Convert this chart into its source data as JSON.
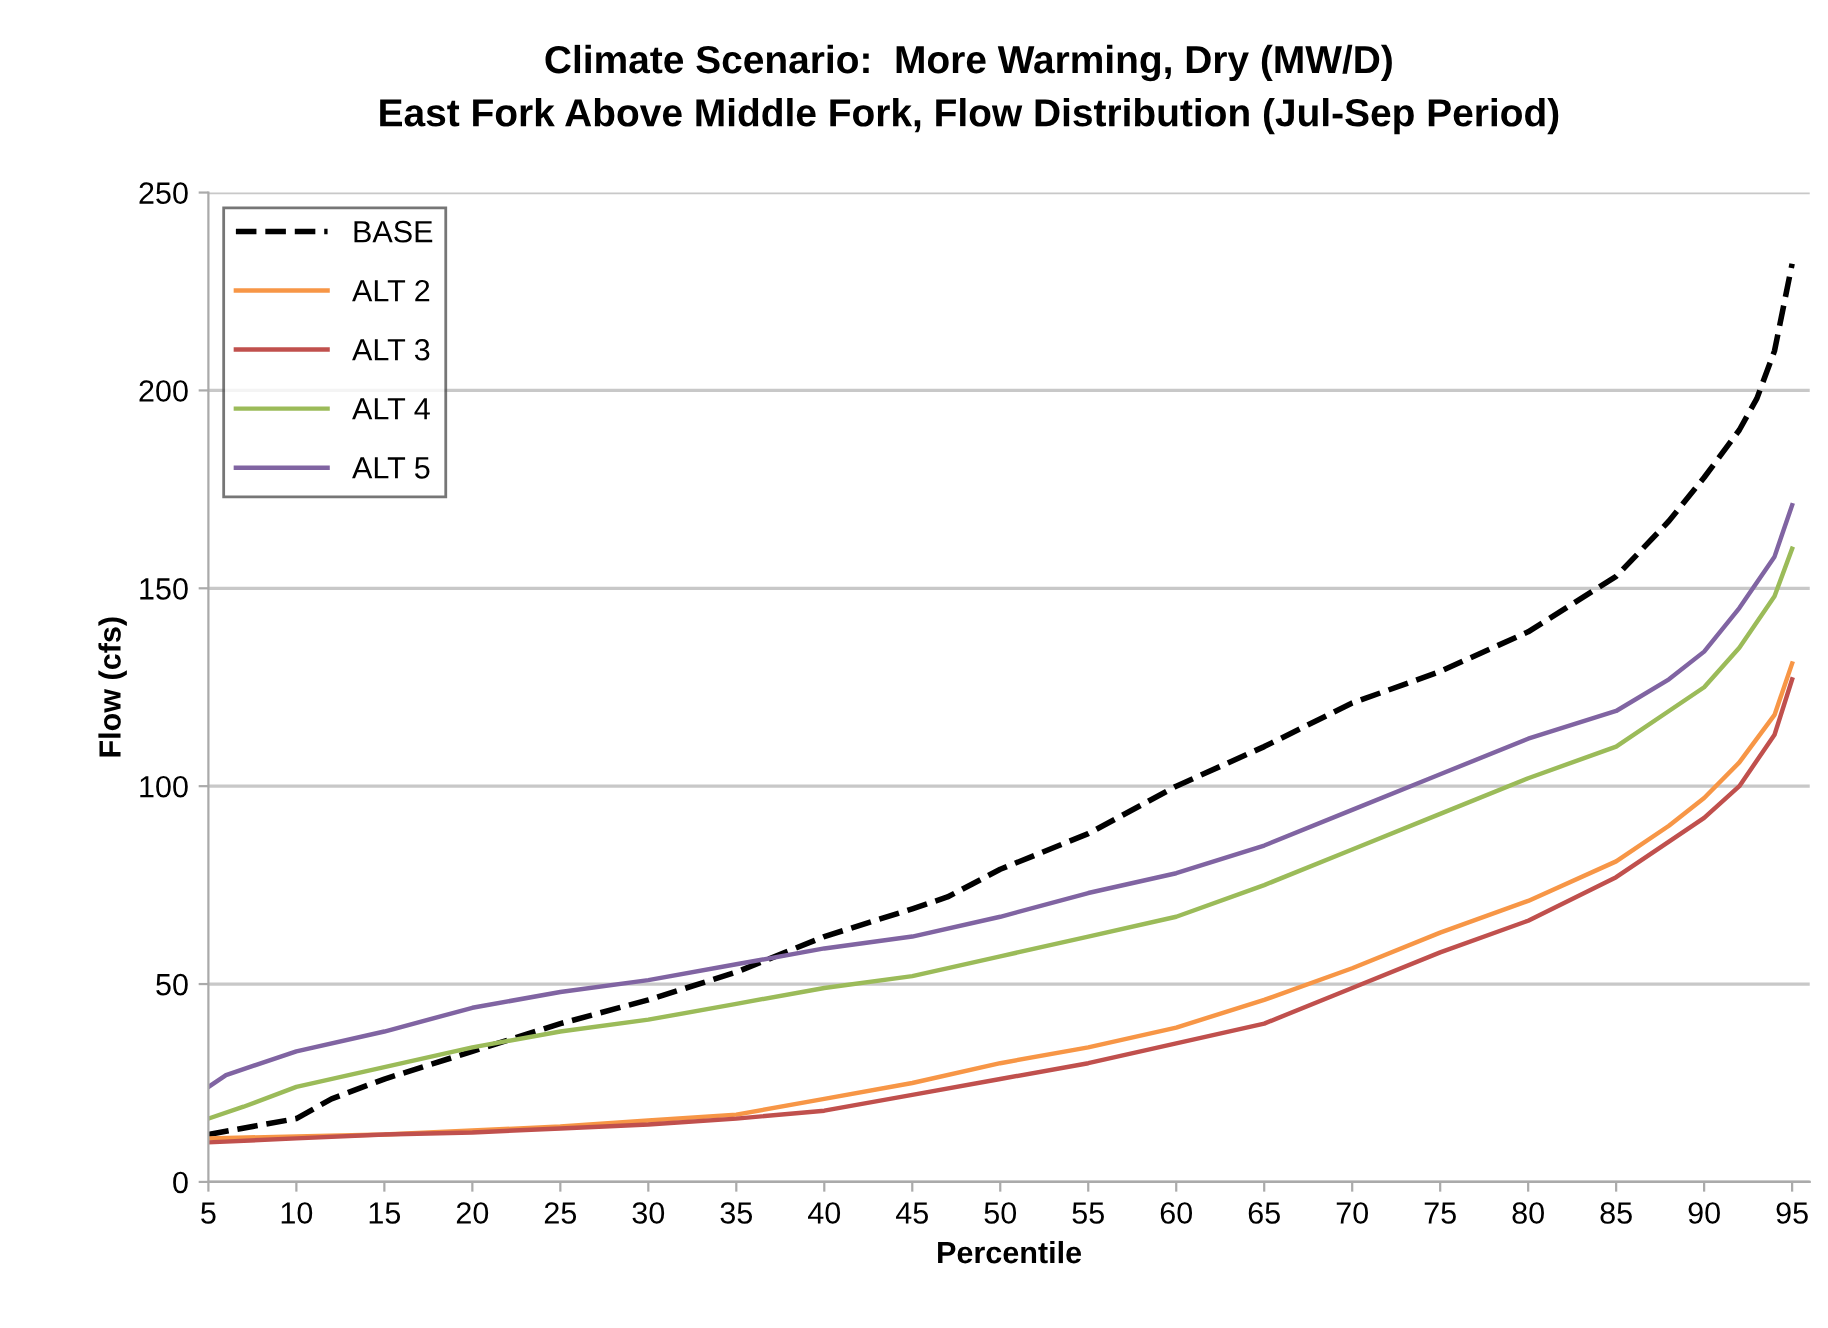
{
  "chart_data": {
    "type": "line",
    "title": "Climate Scenario:  More Warming, Dry (MW/D)",
    "subtitle": "East Fork Above Middle Fork, Flow Distribution (Jul-Sep Period)",
    "xlabel": "Percentile",
    "ylabel": "Flow (cfs)",
    "xlim": [
      5,
      96
    ],
    "xticks": [
      5,
      10,
      15,
      20,
      25,
      30,
      35,
      40,
      45,
      50,
      55,
      60,
      65,
      70,
      75,
      80,
      85,
      90,
      95
    ],
    "ylim": [
      0,
      250
    ],
    "yticks": [
      0,
      50,
      100,
      150,
      200,
      250
    ],
    "grid": "y",
    "legend": "top left",
    "series": [
      {
        "name": "BASE",
        "color": "#000000",
        "line_style": "dashed",
        "x": [
          5,
          10,
          12,
          15,
          20,
          25,
          30,
          35,
          40,
          45,
          47,
          50,
          55,
          60,
          65,
          70,
          75,
          80,
          85,
          88,
          90,
          92,
          93,
          94,
          95
        ],
        "values": [
          12,
          16,
          21,
          26,
          33,
          40,
          46,
          53,
          62,
          69,
          72,
          79,
          88,
          100,
          110,
          121,
          129,
          139,
          153,
          167,
          178,
          190,
          198,
          210,
          232
        ]
      },
      {
        "name": "ALT 2",
        "color": "#f79646",
        "x": [
          5,
          10,
          15,
          20,
          25,
          30,
          35,
          40,
          45,
          50,
          55,
          60,
          65,
          70,
          75,
          80,
          85,
          88,
          90,
          92,
          94,
          95
        ],
        "values": [
          11,
          11.5,
          12,
          13,
          14,
          15.5,
          17,
          21,
          25,
          30,
          34,
          39,
          46,
          54,
          63,
          71,
          81,
          90,
          97,
          106,
          118,
          131
        ]
      },
      {
        "name": "ALT 3",
        "color": "#c0504d",
        "x": [
          5,
          10,
          15,
          20,
          25,
          30,
          35,
          40,
          45,
          50,
          55,
          60,
          65,
          70,
          75,
          80,
          85,
          88,
          90,
          92,
          94,
          95
        ],
        "values": [
          10,
          11,
          12,
          12.5,
          13.5,
          14.5,
          16,
          18,
          22,
          26,
          30,
          35,
          40,
          49,
          58,
          66,
          77,
          86,
          92,
          100,
          113,
          127
        ]
      },
      {
        "name": "ALT 4",
        "color": "#9bbb59",
        "x": [
          5,
          7,
          10,
          15,
          20,
          25,
          30,
          35,
          40,
          45,
          50,
          55,
          60,
          65,
          70,
          75,
          80,
          85,
          88,
          90,
          92,
          94,
          95
        ],
        "values": [
          16,
          19,
          24,
          29,
          34,
          38,
          41,
          45,
          49,
          52,
          57,
          62,
          67,
          75,
          84,
          93,
          102,
          110,
          119,
          125,
          135,
          148,
          160
        ]
      },
      {
        "name": "ALT 5",
        "color": "#8064a2",
        "x": [
          5,
          6,
          10,
          15,
          20,
          25,
          30,
          35,
          40,
          45,
          50,
          55,
          60,
          65,
          70,
          75,
          80,
          85,
          88,
          90,
          92,
          94,
          95
        ],
        "values": [
          24,
          27,
          33,
          38,
          44,
          48,
          51,
          55,
          59,
          62,
          67,
          73,
          78,
          85,
          94,
          103,
          112,
          119,
          127,
          134,
          145,
          158,
          171
        ]
      }
    ]
  }
}
